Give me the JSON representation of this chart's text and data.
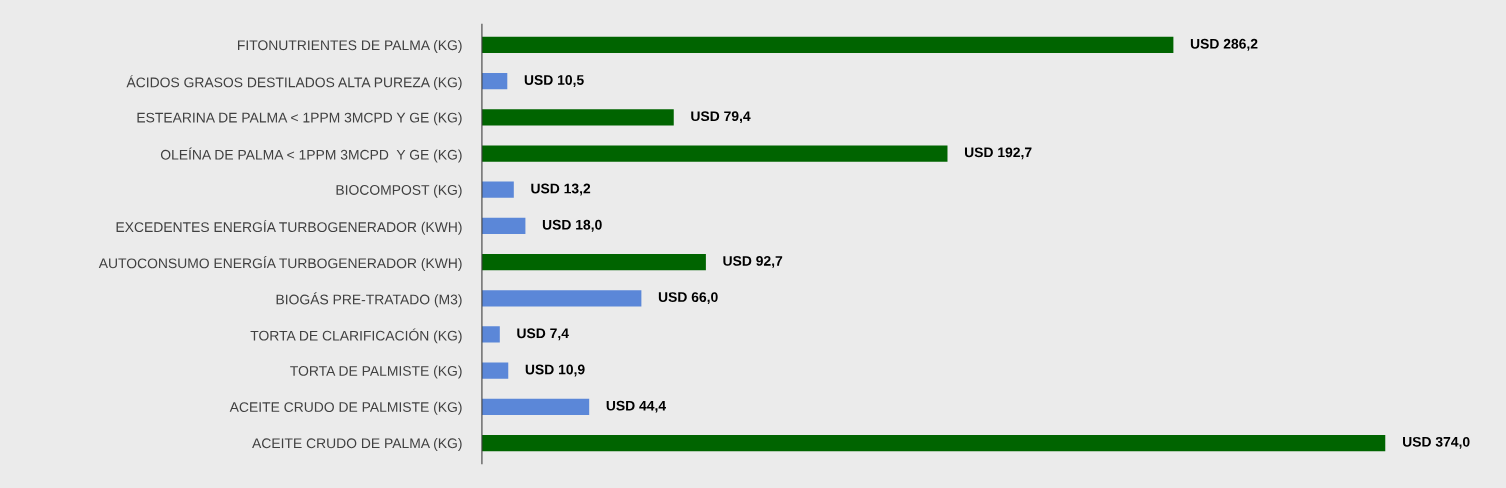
{
  "chart_data": {
    "type": "bar",
    "orientation": "horizontal",
    "categories": [
      "FITONUTRIENTES DE PALMA (KG)",
      "ÁCIDOS GRASOS DESTILADOS ALTA PUREZA (KG)",
      "ESTEARINA DE PALMA < 1PPM 3MCPD Y GE (KG)",
      "OLEÍNA DE PALMA < 1PPM 3MCPD  Y GE (KG)",
      "BIOCOMPOST (KG)",
      "EXCEDENTES ENERGÍA TURBOGENERADOR (KWH)",
      "AUTOCONSUMO ENERGÍA TURBOGENERADOR (KWH)",
      "BIOGÁS PRE-TRATADO (M3)",
      "TORTA DE CLARIFICACIÓN (KG)",
      "TORTA DE PALMISTE (KG)",
      "ACEITE CRUDO DE PALMISTE (KG)",
      "ACEITE CRUDO DE PALMA (KG)"
    ],
    "values": [
      286.2,
      10.5,
      79.4,
      192.7,
      13.2,
      18.0,
      92.7,
      66.0,
      7.4,
      10.9,
      44.4,
      374.0
    ],
    "colors": [
      "#006400",
      "#5b87d8",
      "#006400",
      "#006400",
      "#5b87d8",
      "#5b87d8",
      "#006400",
      "#5b87d8",
      "#5b87d8",
      "#5b87d8",
      "#5b87d8",
      "#006400"
    ],
    "value_labels": [
      "USD 286,2",
      "USD 10,5",
      "USD 79,4",
      "USD 192,7",
      "USD 13,2",
      "USD 18,0",
      "USD 92,7",
      "USD 66,0",
      "USD 7,4",
      "USD 10,9",
      "USD 44,4",
      "USD 374,0"
    ],
    "grid": false,
    "legend": false
  }
}
